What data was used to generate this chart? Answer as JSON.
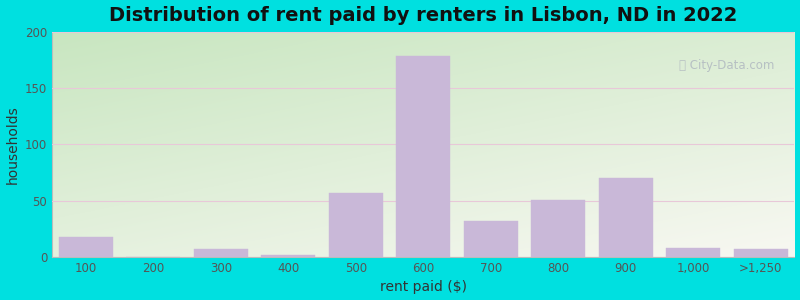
{
  "categories": [
    "100",
    "200",
    "300",
    "400",
    "500",
    "600",
    "700",
    "800",
    "900",
    "1,000",
    ">1,250"
  ],
  "values": [
    18,
    0,
    7,
    2,
    57,
    178,
    32,
    51,
    70,
    8,
    7
  ],
  "bar_color": "#c9b8d8",
  "bar_edgecolor": "#c9b8d8",
  "title": "Distribution of rent paid by renters in Lisbon, ND in 2022",
  "xlabel": "rent paid ($)",
  "ylabel": "households",
  "ylim": [
    0,
    200
  ],
  "yticks": [
    0,
    50,
    100,
    150,
    200
  ],
  "title_fontsize": 14,
  "axis_label_fontsize": 10,
  "tick_fontsize": 8.5,
  "background_outer": "#00e0e0",
  "bg_color_topleft": "#c8e6c0",
  "bg_color_bottomright": "#f8f8f2",
  "watermark_text": "City-Data.com",
  "bar_width": 0.8,
  "figsize": [
    8.0,
    3.0
  ],
  "dpi": 100
}
